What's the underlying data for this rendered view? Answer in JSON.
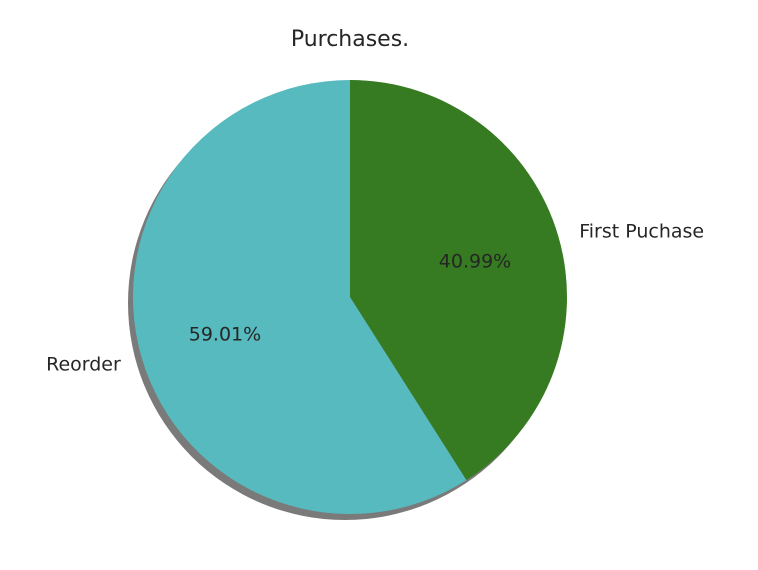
{
  "chart_data": {
    "type": "pie",
    "title": "Purchases.",
    "start_angle_deg": 90,
    "direction": "clockwise",
    "shadow": true,
    "slices": [
      {
        "label": "First Puchase",
        "value": 40.99,
        "pct_label": "40.99%",
        "color": "#367b21"
      },
      {
        "label": "Reorder",
        "value": 59.01,
        "pct_label": "59.01%",
        "color": "#57babe"
      }
    ]
  }
}
